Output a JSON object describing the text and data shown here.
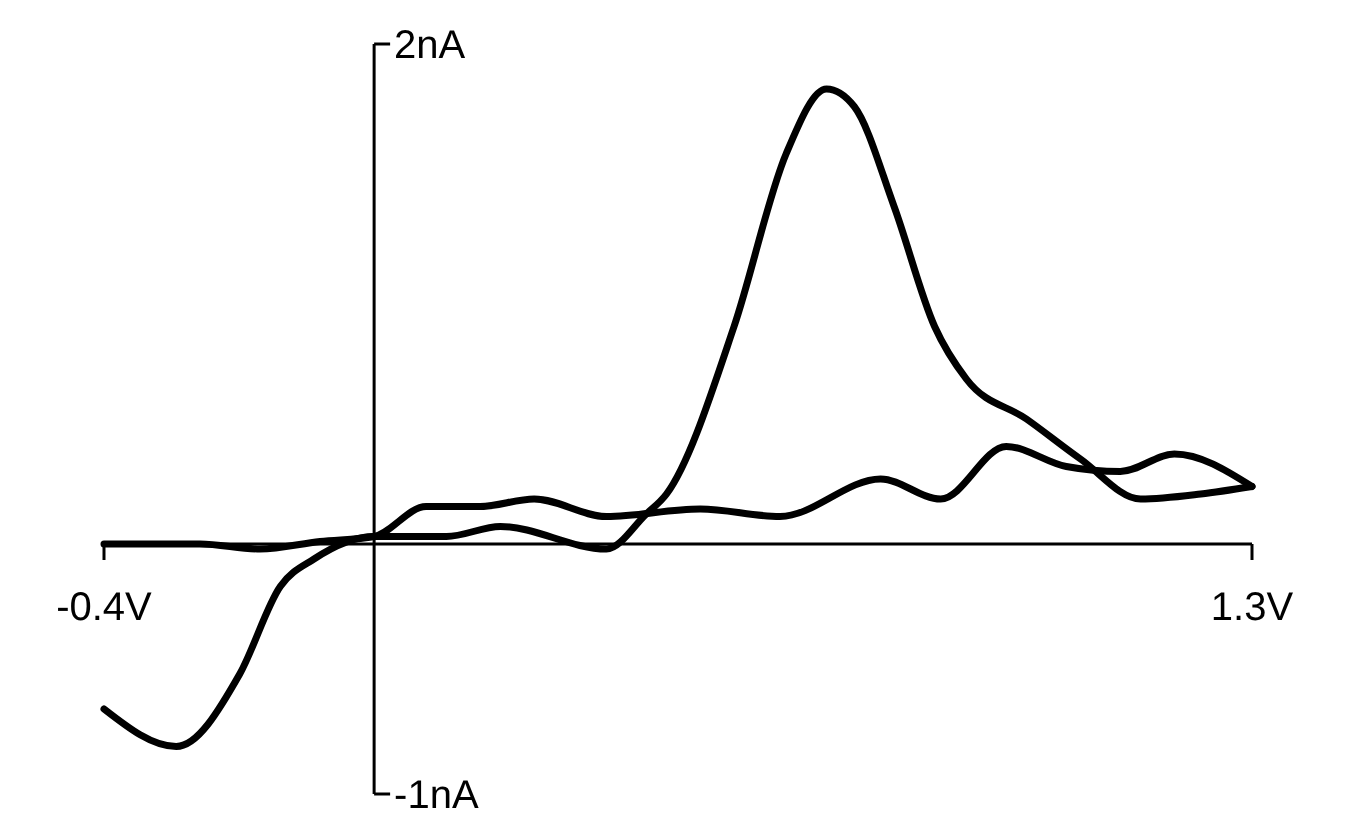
{
  "chart_data": {
    "type": "line",
    "xlim": [
      -0.4,
      1.3
    ],
    "ylim": [
      -1,
      2
    ],
    "xticks": [
      {
        "value": -0.4,
        "label": "-0.4V"
      },
      {
        "value": 1.3,
        "label": "1.3V"
      }
    ],
    "yticks": [
      {
        "value": -1,
        "label": "-1nA"
      },
      {
        "value": 2,
        "label": "2nA"
      }
    ],
    "grid": false,
    "marker": "none",
    "line_style": "solid",
    "series": [
      {
        "color": "#000000",
        "x": [
          -0.4,
          -0.293,
          -0.199,
          -0.139,
          -0.089,
          0,
          0.107,
          0.187,
          0.344,
          0.403,
          0.433,
          0.533,
          0.61,
          0.67,
          0.711,
          0.77,
          0.83,
          0.877,
          0.966,
          1.046,
          1.135,
          1.224,
          1.3
        ],
        "values": [
          -0.66,
          -0.81,
          -0.52,
          -0.17,
          -0.06,
          0.03,
          0.03,
          0.07,
          -0.02,
          0.12,
          0.2,
          0.87,
          1.56,
          1.82,
          1.75,
          1.35,
          0.87,
          0.66,
          0.5,
          0.34,
          0.18,
          0.2,
          0.23
        ]
      },
      {
        "color": "#000000",
        "x": [
          -0.4,
          -0.258,
          -0.169,
          -0.08,
          0,
          0.077,
          0.157,
          0.237,
          0.344,
          0.483,
          0.601,
          0.75,
          0.839,
          0.936,
          1.025,
          1.105,
          1.185,
          1.3
        ],
        "values": [
          0,
          0,
          -0.02,
          0.01,
          0.03,
          0.15,
          0.15,
          0.18,
          0.11,
          0.14,
          0.11,
          0.26,
          0.18,
          0.39,
          0.31,
          0.29,
          0.36,
          0.23
        ]
      }
    ]
  }
}
